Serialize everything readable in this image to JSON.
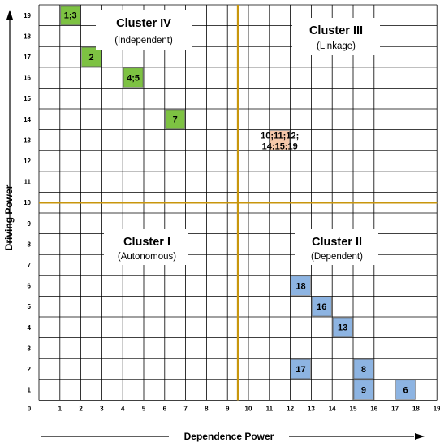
{
  "axes": {
    "x_title": "Dependence Power",
    "y_title": "Driving Power",
    "origin_label": "0",
    "x_ticks": [
      "1",
      "2",
      "3",
      "4",
      "5",
      "6",
      "7",
      "8",
      "9",
      "10",
      "11",
      "12",
      "13",
      "14",
      "15",
      "16",
      "17",
      "18",
      "19"
    ],
    "y_ticks": [
      "1",
      "2",
      "3",
      "4",
      "5",
      "6",
      "7",
      "8",
      "9",
      "10",
      "11",
      "12",
      "13",
      "14",
      "15",
      "16",
      "17",
      "18",
      "19"
    ]
  },
  "clusters": {
    "cluster_iv": {
      "title": "Cluster IV",
      "subtitle": "(Independent)"
    },
    "cluster_iii": {
      "title": "Cluster III",
      "subtitle": "(Linkage)"
    },
    "cluster_i": {
      "title": "Cluster I",
      "subtitle": "(Autonomous)"
    },
    "cluster_ii": {
      "title": "Cluster II",
      "subtitle": "(Dependent)"
    }
  },
  "colors": {
    "grid": "#000000",
    "divider": "#c8960c",
    "independent_fill": "#7dc242",
    "linkage_fill": "#f5c7a9",
    "dependent_fill": "#8db4e2"
  },
  "chart_data": {
    "type": "scatter",
    "xlabel": "Dependence Power",
    "ylabel": "Driving Power",
    "xlim": [
      0,
      19
    ],
    "ylim": [
      0,
      19
    ],
    "divider_x": 9.5,
    "divider_y": 9.5,
    "points": [
      {
        "label": "1;3",
        "x": 2,
        "y": 19,
        "group": "independent"
      },
      {
        "label": "2",
        "x": 3,
        "y": 17,
        "group": "independent"
      },
      {
        "label": "4;5",
        "x": 5,
        "y": 16,
        "group": "independent"
      },
      {
        "label": "7",
        "x": 7,
        "y": 14,
        "group": "independent"
      },
      {
        "label_lines": [
          "10;11;12;",
          "14;15;19"
        ],
        "x": 12,
        "y": 13,
        "group": "linkage"
      },
      {
        "label": "18",
        "x": 13,
        "y": 6,
        "group": "dependent"
      },
      {
        "label": "16",
        "x": 14,
        "y": 5,
        "group": "dependent"
      },
      {
        "label": "13",
        "x": 15,
        "y": 4,
        "group": "dependent"
      },
      {
        "label": "17",
        "x": 13,
        "y": 2,
        "group": "dependent"
      },
      {
        "label": "8",
        "x": 16,
        "y": 2,
        "group": "dependent"
      },
      {
        "label": "9",
        "x": 16,
        "y": 1,
        "group": "dependent"
      },
      {
        "label": "6",
        "x": 18,
        "y": 1,
        "group": "dependent"
      }
    ]
  }
}
